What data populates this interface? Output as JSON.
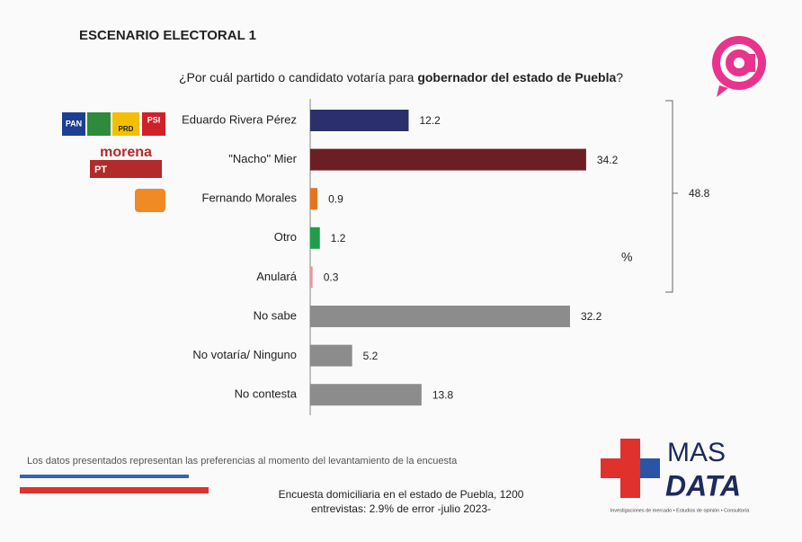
{
  "chart_data": {
    "type": "bar",
    "orientation": "horizontal",
    "title": "ESCENARIO ELECTORAL 1",
    "subtitle": [
      "¿Por cuál partido o candidato votaría para ",
      "gobernador del estado de Puebla",
      "?"
    ],
    "categories": [
      "Eduardo Rivera Pérez",
      "\"Nacho\" Mier",
      "Fernando Morales",
      "Otro",
      "Anulará",
      "No sabe",
      "No votaría/ Ninguno",
      "No contesta"
    ],
    "values": [
      12.2,
      34.2,
      0.9,
      1.2,
      0.3,
      32.2,
      5.2,
      13.8
    ],
    "colors": [
      "#2b2f6b",
      "#6b1e24",
      "#e8731f",
      "#1e9e48",
      "#e59a9c",
      "#8c8c8c",
      "#8c8c8c",
      "#8c8c8c"
    ],
    "xlim": [
      0,
      38
    ],
    "annotations": {
      "bracket_total": "48.8",
      "unit": "%"
    },
    "party_logos": [
      "PAN",
      "PRD",
      "PSI",
      "morena",
      "PT"
    ],
    "footnote": "Los datos presentados representan las preferencias al momento del levantamiento de la encuesta",
    "source": [
      "Encuesta domiciliaria en el estado de Puebla, 1200",
      "entrevistas: 2.9% de error -julio 2023-"
    ],
    "brand": {
      "name": [
        "MAS",
        "DATA"
      ],
      "tagline": "Investigaciones de mercado • Estudios de opinión • Consultoría"
    }
  }
}
